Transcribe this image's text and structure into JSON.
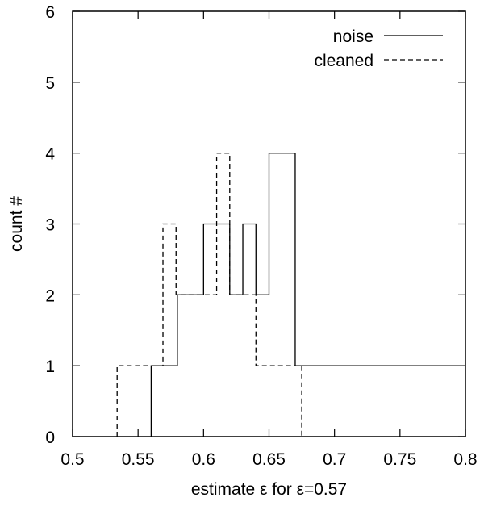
{
  "chart_data": {
    "type": "histogram",
    "xlabel": "estimate ε for ε=0.57",
    "ylabel": "count #",
    "xlim": [
      0.5,
      0.8
    ],
    "ylim": [
      0,
      6
    ],
    "xticks": [
      0.5,
      0.55,
      0.6,
      0.65,
      0.7,
      0.75,
      0.8
    ],
    "xtick_labels": [
      "0.5",
      "0.55",
      "0.6",
      "0.65",
      "0.7",
      "0.75",
      "0.8"
    ],
    "yticks": [
      0,
      1,
      2,
      3,
      4,
      5,
      6
    ],
    "ytick_labels": [
      "0",
      "1",
      "2",
      "3",
      "4",
      "5",
      "6"
    ],
    "grid": false,
    "legend_position": "top-right",
    "series": [
      {
        "name": "noise",
        "line_style": "solid",
        "color": "#000000",
        "steps": [
          {
            "x0": 0.56,
            "x1": 0.58,
            "y": 1
          },
          {
            "x0": 0.58,
            "x1": 0.6,
            "y": 2
          },
          {
            "x0": 0.6,
            "x1": 0.62,
            "y": 3
          },
          {
            "x0": 0.62,
            "x1": 0.63,
            "y": 2
          },
          {
            "x0": 0.63,
            "x1": 0.64,
            "y": 3
          },
          {
            "x0": 0.64,
            "x1": 0.65,
            "y": 2
          },
          {
            "x0": 0.65,
            "x1": 0.67,
            "y": 4
          },
          {
            "x0": 0.67,
            "x1": 0.8,
            "y": 1
          }
        ]
      },
      {
        "name": "cleaned",
        "line_style": "dashed",
        "color": "#000000",
        "steps": [
          {
            "x0": 0.534,
            "x1": 0.569,
            "y": 1
          },
          {
            "x0": 0.569,
            "x1": 0.579,
            "y": 3
          },
          {
            "x0": 0.579,
            "x1": 0.61,
            "y": 2
          },
          {
            "x0": 0.61,
            "x1": 0.62,
            "y": 4
          },
          {
            "x0": 0.62,
            "x1": 0.64,
            "y": 2
          },
          {
            "x0": 0.64,
            "x1": 0.675,
            "y": 1
          }
        ]
      }
    ]
  }
}
